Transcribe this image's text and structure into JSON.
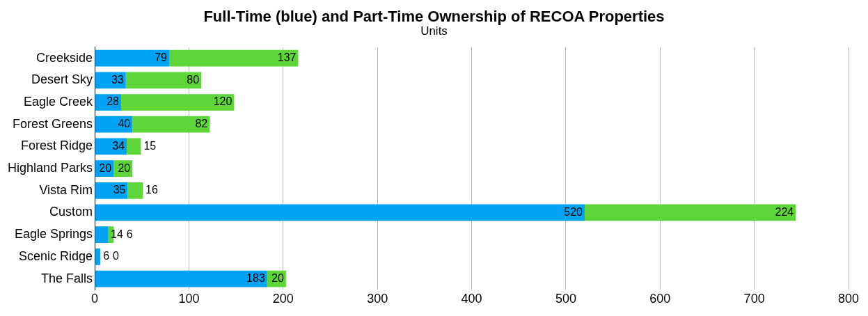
{
  "chart_data": {
    "type": "bar",
    "orientation": "horizontal",
    "stacked": true,
    "title": "Full-Time (blue) and Part-Time Ownership of RECOA Properties",
    "subtitle": "Units",
    "categories": [
      "Creekside",
      "Desert Sky",
      "Eagle Creek",
      "Forest Greens",
      "Forest Ridge",
      "Highland Parks",
      "Vista Rim",
      "Custom",
      "Eagle Springs",
      "Scenic Ridge",
      "The Falls"
    ],
    "series": [
      {
        "color": "#00a2f2",
        "values": [
          79,
          33,
          28,
          40,
          34,
          20,
          35,
          520,
          14,
          6,
          183
        ]
      },
      {
        "color": "#5ed63a",
        "values": [
          137,
          80,
          120,
          82,
          15,
          20,
          16,
          224,
          6,
          0,
          20
        ]
      }
    ],
    "data_labels": true,
    "xlim": [
      0,
      800
    ],
    "xticks": [
      0,
      100,
      200,
      300,
      400,
      500,
      600,
      700,
      800
    ],
    "grid": "x",
    "legend": false
  }
}
